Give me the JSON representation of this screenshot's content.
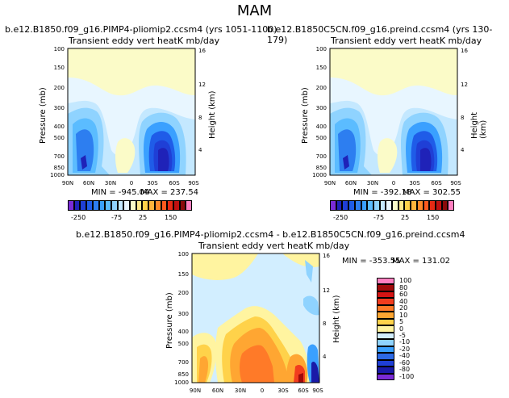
{
  "figure": {
    "title": "MAM"
  },
  "panels": [
    {
      "id": "left",
      "run_title": "b.e12.B1850.f09_g16.PIMP4-pliomip2.ccsm4 (yrs 1051-1100)",
      "subtitle": "Transient eddy vert heatK mb/day",
      "min_label": "MIN = -945.04",
      "max_label": "MAX = 237.54"
    },
    {
      "id": "right",
      "run_title": "b.e12.B1850C5CN.f09_g16.preind.ccsm4 (yrs 130-179)",
      "subtitle": "Transient eddy vert heatK mb/day",
      "min_label": "MIN = -392.18",
      "max_label": "MAX = 302.55"
    },
    {
      "id": "diff",
      "run_title": "b.e12.B1850.f09_g16.PIMP4-pliomip2.ccsm4 - b.e12.B1850C5CN.f09_g16.preind.ccsm4",
      "subtitle": "Transient eddy vert heatK mb/day",
      "min_label": "MIN = -353.55",
      "max_label": "MAX = 131.02"
    }
  ],
  "chart_data": [
    {
      "type": "heatmap",
      "title": "Transient eddy vert heatK mb/day",
      "xlabel": "",
      "ylabel": "Pressure (mb)",
      "y2label": "Height (km)",
      "x_ticks": [
        "90N",
        "60N",
        "30N",
        "0",
        "30S",
        "60S",
        "90S"
      ],
      "y_ticks": [
        "100",
        "150",
        "200",
        "300",
        "400",
        "500",
        "700",
        "850",
        "1000"
      ],
      "y2_ticks": [
        "16",
        "12",
        "8",
        "4"
      ],
      "min": -945.04,
      "max": 237.54,
      "colorbar_labels": [
        "-250",
        "-75",
        "25",
        "150"
      ],
      "colorbar_colors": [
        "#7a2bd6",
        "#1f22b8",
        "#1f3fd6",
        "#1f5ce8",
        "#2d7ef0",
        "#3aa0ff",
        "#5bbcff",
        "#8fd3ff",
        "#c4e8ff",
        "#e8f6ff",
        "#fbfbc8",
        "#ffe98a",
        "#ffd24a",
        "#ffb43c",
        "#ff8a2a",
        "#ff5a1e",
        "#e62a14",
        "#c01010",
        "#8a0a0a",
        "#ff80c0"
      ]
    },
    {
      "type": "heatmap",
      "title": "Transient eddy vert heatK mb/day",
      "xlabel": "",
      "ylabel": "Pressure (mb)",
      "y2label": "Height (km)",
      "x_ticks": [
        "90N",
        "60N",
        "30N",
        "0",
        "30S",
        "60S",
        "90S"
      ],
      "y_ticks": [
        "100",
        "150",
        "200",
        "300",
        "400",
        "500",
        "700",
        "850",
        "1000"
      ],
      "y2_ticks": [
        "16",
        "12",
        "8",
        "4"
      ],
      "min": -392.18,
      "max": 302.55,
      "colorbar_labels": [
        "-250",
        "-75",
        "25",
        "150"
      ]
    },
    {
      "type": "heatmap",
      "title": "Transient eddy vert heatK mb/day",
      "xlabel": "",
      "ylabel": "Pressure (mb)",
      "y2label": "Height (km)",
      "x_ticks": [
        "90N",
        "60N",
        "30N",
        "0",
        "30S",
        "60S",
        "90S"
      ],
      "y_ticks": [
        "100",
        "150",
        "200",
        "300",
        "400",
        "500",
        "700",
        "850",
        "1000"
      ],
      "y2_ticks": [
        "16",
        "12",
        "8",
        "4"
      ],
      "min": -353.55,
      "max": 131.02,
      "colorbar_labels": [
        "100",
        "80",
        "60",
        "40",
        "20",
        "10",
        "5",
        "0",
        "-5",
        "-10",
        "-20",
        "-40",
        "-60",
        "-80",
        "-100"
      ],
      "colorbar_colors": [
        "#ff80c0",
        "#a00a0a",
        "#d41414",
        "#f23c1e",
        "#ff7a28",
        "#ffa632",
        "#ffd24a",
        "#fff4a0",
        "#d2eeff",
        "#8fd3ff",
        "#3aa0ff",
        "#2d6ae6",
        "#1f3fd6",
        "#1a1aa8",
        "#7a2bd6"
      ]
    }
  ]
}
